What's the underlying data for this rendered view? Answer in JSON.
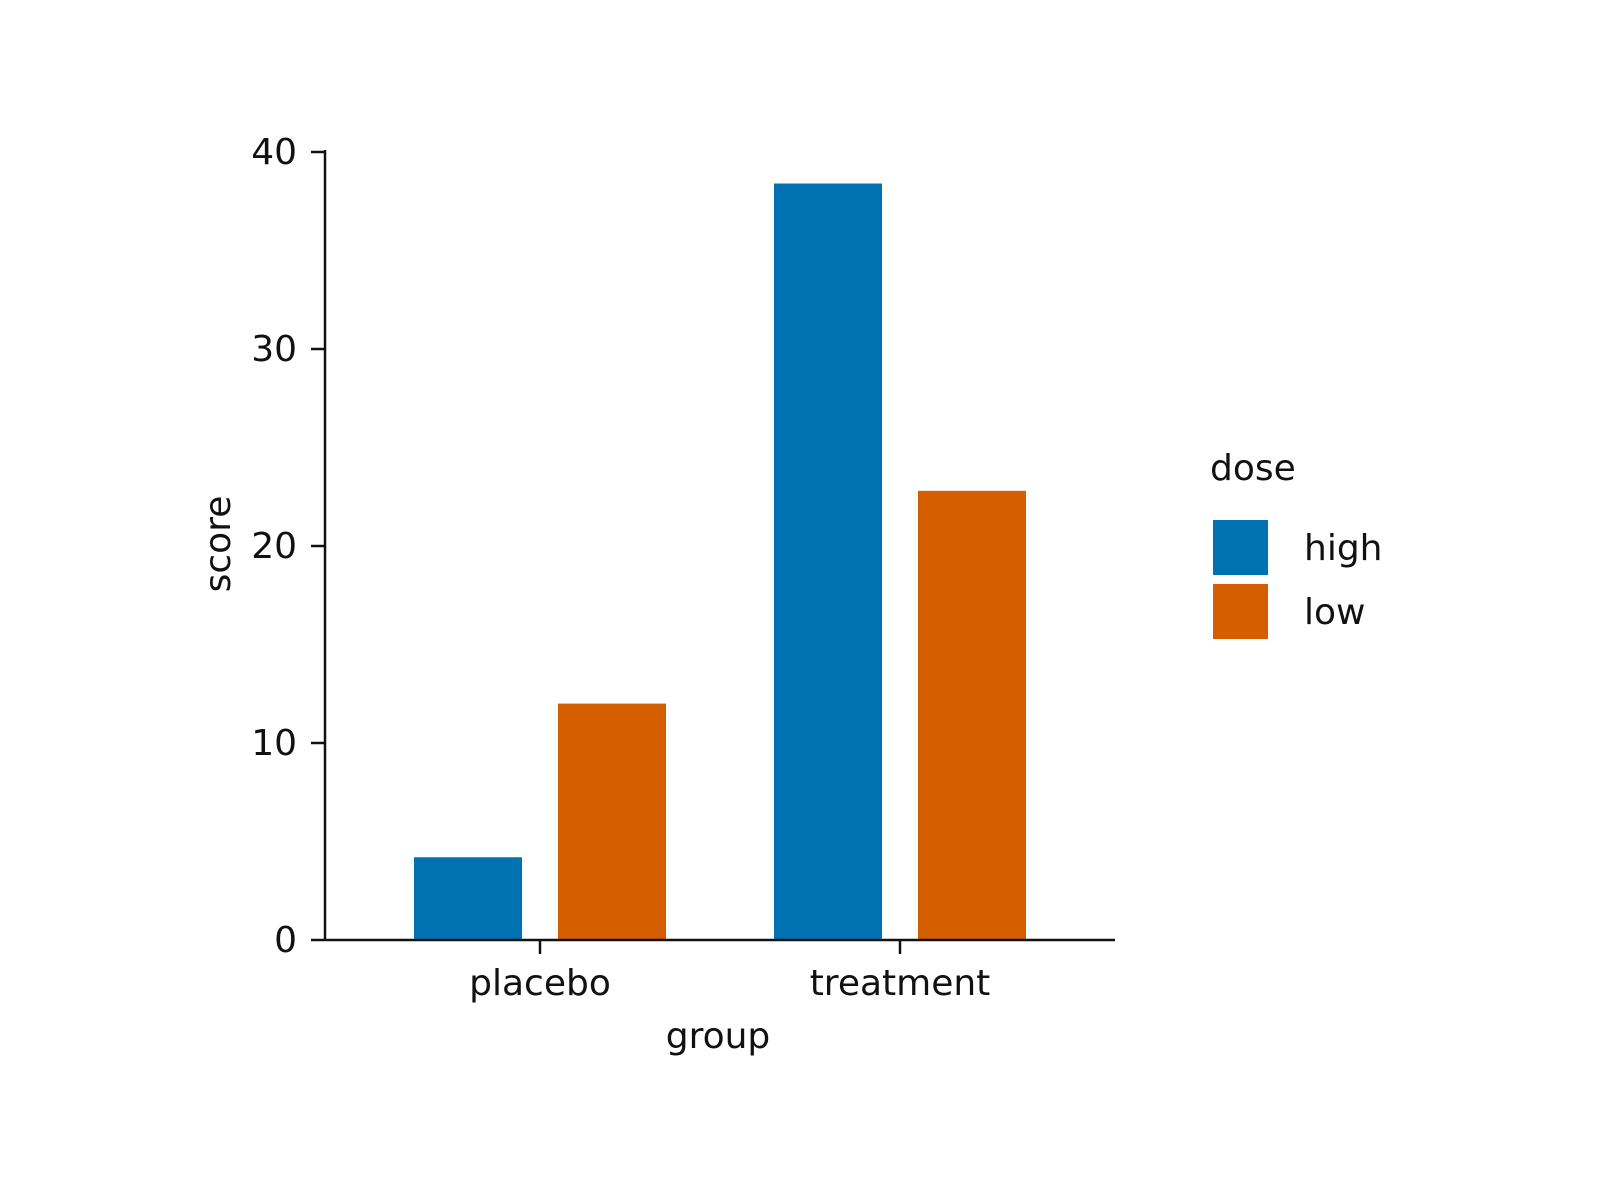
{
  "chart_data": {
    "type": "bar",
    "title": "",
    "xlabel": "group",
    "ylabel": "score",
    "categories": [
      "placebo",
      "treatment"
    ],
    "series": [
      {
        "name": "high",
        "color": "#0072B2",
        "values": [
          4.2,
          38.4
        ]
      },
      {
        "name": "low",
        "color": "#D55E00",
        "values": [
          12.0,
          22.8
        ]
      }
    ],
    "ylim": [
      0,
      40
    ],
    "yticks": [
      0,
      10,
      20,
      30,
      40
    ],
    "grid": false,
    "legend": {
      "title": "dose",
      "placement": "right"
    }
  }
}
